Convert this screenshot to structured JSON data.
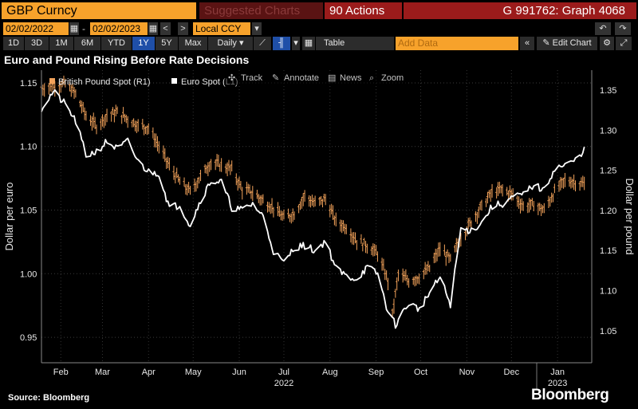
{
  "topbar": {
    "ticker": "GBP Curncy",
    "suggested_charts": "Suggested Charts",
    "actions": "Actions",
    "actions_prefix": "90",
    "graph_id": "G 991762: Graph 4068"
  },
  "controls": {
    "start_date": "02/02/2022",
    "end_date": "02/02/2023",
    "currency": "Local CCY",
    "ranges": [
      "1D",
      "3D",
      "1M",
      "6M",
      "YTD",
      "1Y",
      "5Y",
      "Max"
    ],
    "active_range": "1Y",
    "frequency": "Daily",
    "table_label": "Table",
    "add_data_placeholder": "Add Data",
    "edit_chart_label": "Edit Chart"
  },
  "tools": {
    "track": "Track",
    "annotate": "Annotate",
    "news": "News",
    "zoom": "Zoom"
  },
  "colors": {
    "gbp": "#f2a25a",
    "eur": "#ffffff",
    "accent_orange": "#f7a22b",
    "accent_red": "#9b1b1b"
  },
  "footer": {
    "source": "Source: Bloomberg",
    "brand": "Bloomberg"
  },
  "chart_data": {
    "type": "line",
    "title": "Euro and Pound Rising Before Rate Decisions",
    "ylabel_left": "Dollar per euro",
    "ylabel_right": "Dollar per pound",
    "ylim_left": [
      0.93,
      1.16
    ],
    "ylim_right": [
      1.01,
      1.375
    ],
    "yticks_left": [
      "1.15",
      "1.10",
      "1.05",
      "1.00",
      "0.95"
    ],
    "yticks_left_values": [
      1.15,
      1.1,
      1.05,
      1.0,
      0.95
    ],
    "yticks_right": [
      "1.35",
      "1.30",
      "1.25",
      "1.20",
      "1.15",
      "1.10",
      "1.05"
    ],
    "yticks_right_values": [
      1.35,
      1.3,
      1.25,
      1.2,
      1.15,
      1.1,
      1.05
    ],
    "x_tick_labels": [
      "Feb",
      "Mar",
      "Apr",
      "May",
      "Jun",
      "Jul",
      "Aug",
      "Sep",
      "Oct",
      "Nov",
      "Dec",
      "Jan"
    ],
    "x_tick_dates": [
      "2022-02-15",
      "2022-03-15",
      "2022-04-15",
      "2022-05-15",
      "2022-06-15",
      "2022-07-15",
      "2022-08-15",
      "2022-09-15",
      "2022-10-15",
      "2022-11-15",
      "2022-12-15",
      "2023-01-15"
    ],
    "year_labels": [
      "2022",
      "2023"
    ],
    "year_label_dates": [
      "2022-07-15",
      "2023-01-15"
    ],
    "grid": true,
    "legend_position": "top-left",
    "series": [
      {
        "name": "British Pound Spot",
        "legend_suffix": "(R1)",
        "axis": "right",
        "style": "ohlc-bars",
        "x": [
          "2022-02-02",
          "2022-02-10",
          "2022-02-18",
          "2022-02-25",
          "2022-03-04",
          "2022-03-11",
          "2022-03-18",
          "2022-03-25",
          "2022-04-01",
          "2022-04-08",
          "2022-04-15",
          "2022-04-22",
          "2022-04-29",
          "2022-05-06",
          "2022-05-13",
          "2022-05-20",
          "2022-05-27",
          "2022-06-03",
          "2022-06-10",
          "2022-06-17",
          "2022-06-24",
          "2022-07-01",
          "2022-07-08",
          "2022-07-15",
          "2022-07-22",
          "2022-07-29",
          "2022-08-05",
          "2022-08-12",
          "2022-08-19",
          "2022-08-26",
          "2022-09-02",
          "2022-09-09",
          "2022-09-16",
          "2022-09-23",
          "2022-09-26",
          "2022-09-30",
          "2022-10-07",
          "2022-10-14",
          "2022-10-21",
          "2022-10-28",
          "2022-11-04",
          "2022-11-11",
          "2022-11-18",
          "2022-11-25",
          "2022-12-02",
          "2022-12-09",
          "2022-12-16",
          "2022-12-23",
          "2022-12-30",
          "2023-01-06",
          "2023-01-13",
          "2023-01-20",
          "2023-01-27",
          "2023-02-02"
        ],
        "values": [
          1.352,
          1.355,
          1.358,
          1.345,
          1.318,
          1.305,
          1.318,
          1.322,
          1.314,
          1.306,
          1.303,
          1.28,
          1.255,
          1.236,
          1.223,
          1.242,
          1.26,
          1.256,
          1.251,
          1.226,
          1.222,
          1.212,
          1.203,
          1.19,
          1.196,
          1.218,
          1.208,
          1.214,
          1.186,
          1.179,
          1.162,
          1.156,
          1.146,
          1.112,
          1.07,
          1.12,
          1.112,
          1.117,
          1.128,
          1.152,
          1.138,
          1.166,
          1.186,
          1.205,
          1.222,
          1.226,
          1.219,
          1.205,
          1.207,
          1.2,
          1.223,
          1.237,
          1.235,
          1.232
        ]
      },
      {
        "name": "Euro Spot",
        "legend_suffix": "(L1)",
        "axis": "left",
        "style": "line",
        "x": [
          "2022-02-02",
          "2022-02-10",
          "2022-02-18",
          "2022-02-25",
          "2022-03-04",
          "2022-03-11",
          "2022-03-18",
          "2022-03-25",
          "2022-04-01",
          "2022-04-08",
          "2022-04-15",
          "2022-04-22",
          "2022-04-29",
          "2022-05-06",
          "2022-05-13",
          "2022-05-20",
          "2022-05-27",
          "2022-06-03",
          "2022-06-10",
          "2022-06-17",
          "2022-06-24",
          "2022-07-01",
          "2022-07-08",
          "2022-07-15",
          "2022-07-22",
          "2022-07-29",
          "2022-08-05",
          "2022-08-12",
          "2022-08-19",
          "2022-08-26",
          "2022-09-02",
          "2022-09-09",
          "2022-09-16",
          "2022-09-23",
          "2022-09-28",
          "2022-10-07",
          "2022-10-14",
          "2022-10-21",
          "2022-10-28",
          "2022-11-04",
          "2022-11-11",
          "2022-11-18",
          "2022-11-25",
          "2022-12-02",
          "2022-12-09",
          "2022-12-16",
          "2022-12-23",
          "2022-12-30",
          "2023-01-06",
          "2023-01-13",
          "2023-01-20",
          "2023-01-27",
          "2023-02-02"
        ],
        "values": [
          1.13,
          1.143,
          1.133,
          1.12,
          1.093,
          1.096,
          1.104,
          1.098,
          1.104,
          1.088,
          1.08,
          1.079,
          1.052,
          1.054,
          1.038,
          1.058,
          1.073,
          1.072,
          1.052,
          1.05,
          1.055,
          1.045,
          1.018,
          1.008,
          1.021,
          1.022,
          1.018,
          1.026,
          1.004,
          0.998,
          0.996,
          1.005,
          1.0,
          0.97,
          0.96,
          0.977,
          0.972,
          0.985,
          0.997,
          0.976,
          1.035,
          1.034,
          1.04,
          1.053,
          1.055,
          1.06,
          1.062,
          1.07,
          1.065,
          1.083,
          1.085,
          1.089,
          1.098
        ]
      }
    ]
  }
}
